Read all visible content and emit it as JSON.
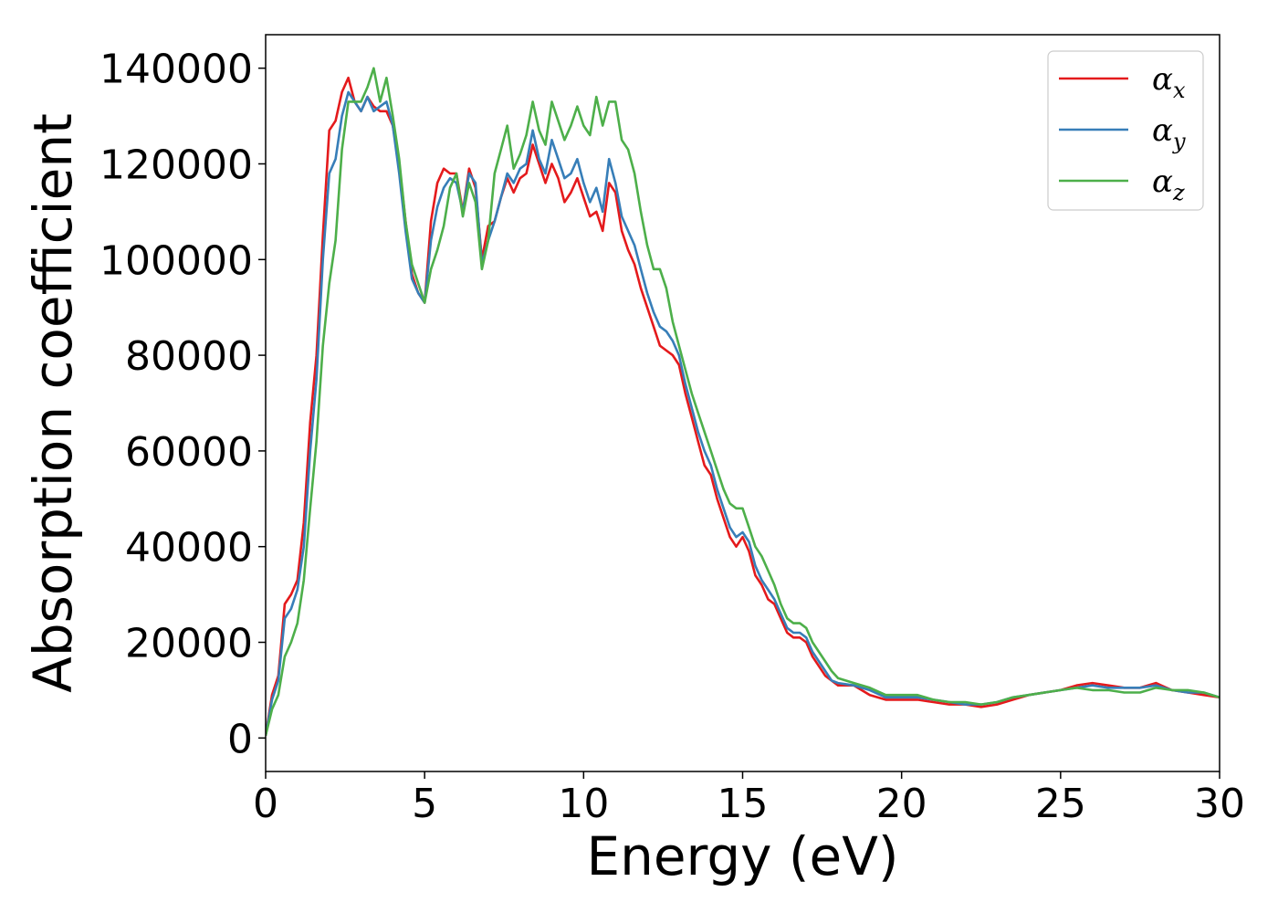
{
  "chart_data": {
    "type": "line",
    "title": "",
    "xlabel": "Energy (eV)",
    "ylabel": "Absorption coefficient",
    "xlim": [
      0,
      30
    ],
    "ylim": [
      -7000,
      147000
    ],
    "xticks": [
      0,
      5,
      10,
      15,
      20,
      25,
      30
    ],
    "yticks": [
      0,
      20000,
      40000,
      60000,
      80000,
      100000,
      120000,
      140000
    ],
    "grid": false,
    "legend_position": "top-right",
    "series": [
      {
        "name": "α",
        "subscript": "x",
        "color": "#e41a1c",
        "x": [
          0,
          0.2,
          0.4,
          0.6,
          0.8,
          1.0,
          1.2,
          1.4,
          1.6,
          1.8,
          2.0,
          2.2,
          2.4,
          2.6,
          2.8,
          3.0,
          3.2,
          3.4,
          3.6,
          3.8,
          4.0,
          4.2,
          4.4,
          4.6,
          4.8,
          5.0,
          5.2,
          5.4,
          5.6,
          5.8,
          6.0,
          6.2,
          6.4,
          6.6,
          6.8,
          7.0,
          7.2,
          7.4,
          7.6,
          7.8,
          8.0,
          8.2,
          8.4,
          8.6,
          8.8,
          9.0,
          9.2,
          9.4,
          9.6,
          9.8,
          10.0,
          10.2,
          10.4,
          10.6,
          10.8,
          11.0,
          11.2,
          11.4,
          11.6,
          11.8,
          12.0,
          12.2,
          12.4,
          12.6,
          12.8,
          13.0,
          13.2,
          13.4,
          13.6,
          13.8,
          14.0,
          14.2,
          14.4,
          14.6,
          14.8,
          15.0,
          15.2,
          15.4,
          15.6,
          15.8,
          16.0,
          16.2,
          16.4,
          16.6,
          16.8,
          17.0,
          17.2,
          17.4,
          17.6,
          17.8,
          18.0,
          18.5,
          19.0,
          19.5,
          20.0,
          20.5,
          21.0,
          21.5,
          22.0,
          22.5,
          23.0,
          23.5,
          24.0,
          24.5,
          25.0,
          25.5,
          26.0,
          26.5,
          27.0,
          27.5,
          28.0,
          28.5,
          29.0,
          29.5,
          30.0
        ],
        "y": [
          500,
          9000,
          13000,
          28000,
          30000,
          33000,
          45000,
          66000,
          80000,
          105000,
          127000,
          129000,
          135000,
          138000,
          133000,
          131000,
          134000,
          132000,
          131000,
          131000,
          128000,
          120000,
          108000,
          97000,
          93000,
          91000,
          108000,
          116000,
          119000,
          118000,
          118000,
          110000,
          119000,
          115000,
          100000,
          107000,
          108000,
          113000,
          117000,
          114000,
          117000,
          118000,
          124000,
          120000,
          116000,
          120000,
          117000,
          112000,
          114000,
          117000,
          113000,
          109000,
          110000,
          106000,
          116000,
          114000,
          106000,
          102000,
          99000,
          94000,
          90000,
          86000,
          82000,
          81000,
          80000,
          78000,
          72000,
          67000,
          62000,
          57000,
          55000,
          50000,
          46000,
          42000,
          40000,
          42000,
          39000,
          34000,
          32000,
          29000,
          28000,
          25000,
          22000,
          21000,
          21000,
          20000,
          17000,
          15000,
          13000,
          12000,
          11000,
          11000,
          9000,
          8000,
          8000,
          8000,
          7500,
          7000,
          7000,
          6500,
          7000,
          8000,
          9000,
          9500,
          10000,
          11000,
          11500,
          11000,
          10500,
          10500,
          11500,
          10000,
          9500,
          9000,
          8500
        ]
      },
      {
        "name": "α",
        "subscript": "y",
        "color": "#377eb8",
        "x": [
          0,
          0.2,
          0.4,
          0.6,
          0.8,
          1.0,
          1.2,
          1.4,
          1.6,
          1.8,
          2.0,
          2.2,
          2.4,
          2.6,
          2.8,
          3.0,
          3.2,
          3.4,
          3.6,
          3.8,
          4.0,
          4.2,
          4.4,
          4.6,
          4.8,
          5.0,
          5.2,
          5.4,
          5.6,
          5.8,
          6.0,
          6.2,
          6.4,
          6.6,
          6.8,
          7.0,
          7.2,
          7.4,
          7.6,
          7.8,
          8.0,
          8.2,
          8.4,
          8.6,
          8.8,
          9.0,
          9.2,
          9.4,
          9.6,
          9.8,
          10.0,
          10.2,
          10.4,
          10.6,
          10.8,
          11.0,
          11.2,
          11.4,
          11.6,
          11.8,
          12.0,
          12.2,
          12.4,
          12.6,
          12.8,
          13.0,
          13.2,
          13.4,
          13.6,
          13.8,
          14.0,
          14.2,
          14.4,
          14.6,
          14.8,
          15.0,
          15.2,
          15.4,
          15.6,
          15.8,
          16.0,
          16.2,
          16.4,
          16.6,
          16.8,
          17.0,
          17.2,
          17.4,
          17.6,
          17.8,
          18.0,
          18.5,
          19.0,
          19.5,
          20.0,
          20.5,
          21.0,
          21.5,
          22.0,
          22.5,
          23.0,
          23.5,
          24.0,
          24.5,
          25.0,
          25.5,
          26.0,
          26.5,
          27.0,
          27.5,
          28.0,
          28.5,
          29.0,
          29.5,
          30.0
        ],
        "y": [
          500,
          8000,
          12000,
          25000,
          27000,
          31000,
          40000,
          60000,
          75000,
          100000,
          118000,
          121000,
          130000,
          135000,
          133000,
          131000,
          134000,
          131000,
          132000,
          133000,
          128000,
          118000,
          106000,
          96000,
          93000,
          91000,
          104000,
          111000,
          115000,
          117000,
          116000,
          110000,
          118000,
          116000,
          99000,
          104000,
          108000,
          113000,
          118000,
          116000,
          119000,
          120000,
          127000,
          121000,
          118000,
          125000,
          121000,
          117000,
          118000,
          121000,
          116000,
          112000,
          115000,
          110000,
          121000,
          116000,
          109000,
          106000,
          103000,
          98000,
          93000,
          89000,
          86000,
          85000,
          83000,
          80000,
          74000,
          69000,
          64000,
          60000,
          57000,
          52000,
          48000,
          44000,
          42000,
          43000,
          41000,
          36000,
          33000,
          31000,
          29000,
          26000,
          23000,
          22000,
          22000,
          21000,
          18000,
          16000,
          14000,
          12000,
          11500,
          11000,
          10000,
          8500,
          8500,
          8500,
          8000,
          7500,
          7000,
          7000,
          7500,
          8500,
          9000,
          9500,
          10000,
          10500,
          11000,
          10500,
          10500,
          10500,
          11000,
          10000,
          9500,
          9500,
          8500
        ]
      },
      {
        "name": "α",
        "subscript": "z",
        "color": "#4daf4a",
        "x": [
          0,
          0.2,
          0.4,
          0.6,
          0.8,
          1.0,
          1.2,
          1.4,
          1.6,
          1.8,
          2.0,
          2.2,
          2.4,
          2.6,
          2.8,
          3.0,
          3.2,
          3.4,
          3.6,
          3.8,
          4.0,
          4.2,
          4.4,
          4.6,
          4.8,
          5.0,
          5.2,
          5.4,
          5.6,
          5.8,
          6.0,
          6.2,
          6.4,
          6.6,
          6.8,
          7.0,
          7.2,
          7.4,
          7.6,
          7.8,
          8.0,
          8.2,
          8.4,
          8.6,
          8.8,
          9.0,
          9.2,
          9.4,
          9.6,
          9.8,
          10.0,
          10.2,
          10.4,
          10.6,
          10.8,
          11.0,
          11.2,
          11.4,
          11.6,
          11.8,
          12.0,
          12.2,
          12.4,
          12.6,
          12.8,
          13.0,
          13.2,
          13.4,
          13.6,
          13.8,
          14.0,
          14.2,
          14.4,
          14.6,
          14.8,
          15.0,
          15.2,
          15.4,
          15.6,
          15.8,
          16.0,
          16.2,
          16.4,
          16.6,
          16.8,
          17.0,
          17.2,
          17.4,
          17.6,
          17.8,
          18.0,
          18.5,
          19.0,
          19.5,
          20.0,
          20.5,
          21.0,
          21.5,
          22.0,
          22.5,
          23.0,
          23.5,
          24.0,
          24.5,
          25.0,
          25.5,
          26.0,
          26.5,
          27.0,
          27.5,
          28.0,
          28.5,
          29.0,
          29.5,
          30.0
        ],
        "y": [
          500,
          6000,
          9000,
          17000,
          20000,
          24000,
          33000,
          48000,
          62000,
          82000,
          95000,
          104000,
          123000,
          133000,
          133000,
          133000,
          136000,
          140000,
          133000,
          138000,
          130000,
          121000,
          108000,
          99000,
          95000,
          91000,
          98000,
          102000,
          107000,
          115000,
          118000,
          109000,
          116000,
          112000,
          98000,
          104000,
          118000,
          123000,
          128000,
          119000,
          122000,
          126000,
          133000,
          127000,
          124000,
          133000,
          129000,
          125000,
          128000,
          132000,
          128000,
          126000,
          134000,
          128000,
          133000,
          133000,
          125000,
          123000,
          118000,
          110000,
          103000,
          98000,
          98000,
          94000,
          87000,
          82000,
          77000,
          72000,
          68000,
          64000,
          60000,
          56000,
          52000,
          49000,
          48000,
          48000,
          44000,
          40000,
          38000,
          35000,
          32000,
          28000,
          25000,
          24000,
          24000,
          23000,
          20000,
          18000,
          16000,
          14000,
          12500,
          11500,
          10500,
          9000,
          9000,
          9000,
          8000,
          7500,
          7500,
          7000,
          7500,
          8500,
          9000,
          9500,
          10000,
          10500,
          10000,
          10000,
          9500,
          9500,
          10500,
          10000,
          10000,
          9500,
          8500
        ]
      }
    ]
  }
}
